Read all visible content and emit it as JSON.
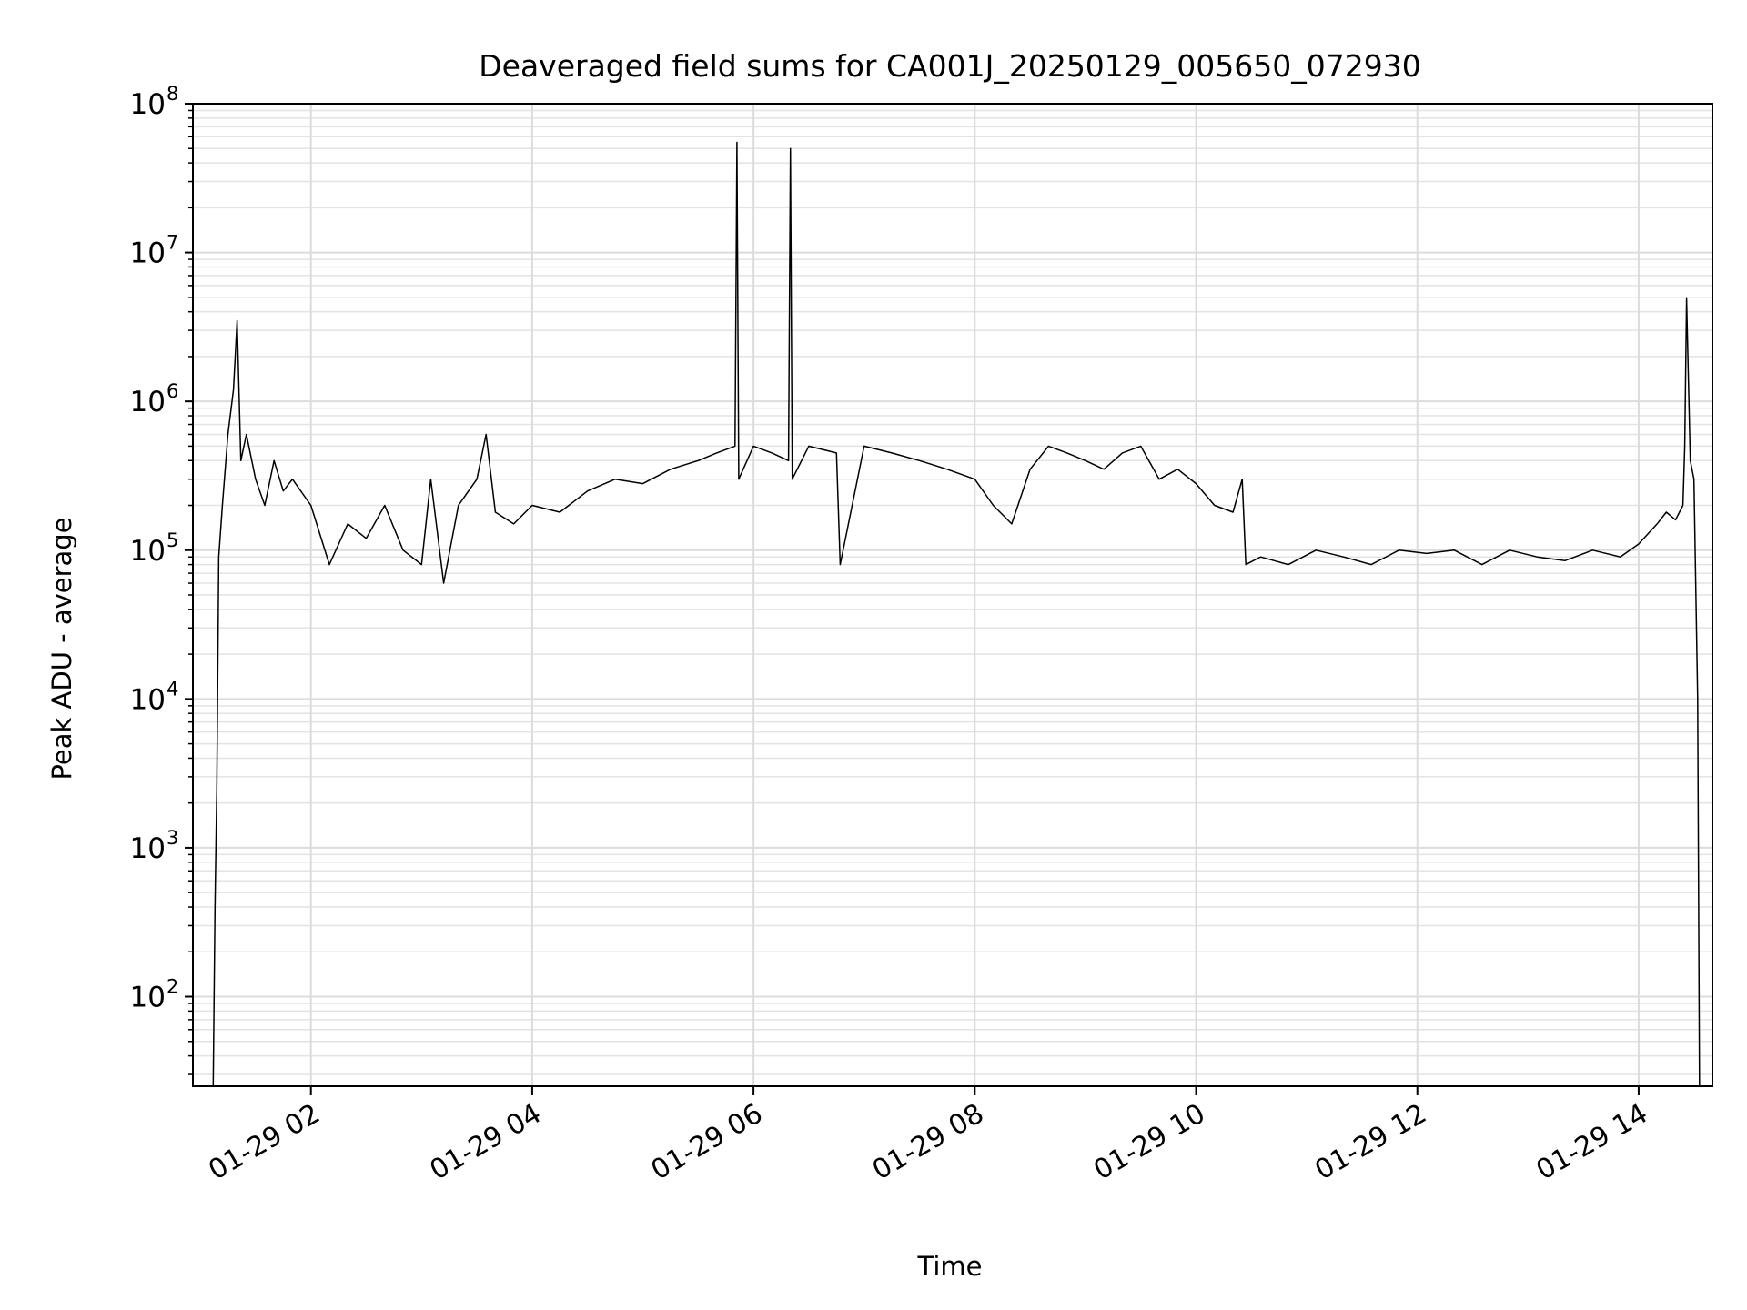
{
  "chart_data": {
    "type": "line",
    "title": "Deaveraged field sums for CA001J_20250129_005650_072930",
    "xlabel": "Time",
    "ylabel": "Peak ADU - average",
    "yscale": "log",
    "ylim": [
      25,
      100000000
    ],
    "xlim": [
      "2025-01-29T00:56:00",
      "2025-01-29T14:40:00"
    ],
    "grid": true,
    "x_ticks": [
      {
        "t": "2025-01-29T02:00",
        "label": "01-29 02"
      },
      {
        "t": "2025-01-29T04:00",
        "label": "01-29 04"
      },
      {
        "t": "2025-01-29T06:00",
        "label": "01-29 06"
      },
      {
        "t": "2025-01-29T08:00",
        "label": "01-29 08"
      },
      {
        "t": "2025-01-29T10:00",
        "label": "01-29 10"
      },
      {
        "t": "2025-01-29T12:00",
        "label": "01-29 12"
      },
      {
        "t": "2025-01-29T14:00",
        "label": "01-29 14"
      }
    ],
    "y_ticks": [
      {
        "v": 100,
        "base": "10",
        "exp": "2"
      },
      {
        "v": 1000,
        "base": "10",
        "exp": "3"
      },
      {
        "v": 10000,
        "base": "10",
        "exp": "4"
      },
      {
        "v": 100000,
        "base": "10",
        "exp": "5"
      },
      {
        "v": 1000000,
        "base": "10",
        "exp": "6"
      },
      {
        "v": 10000000,
        "base": "10",
        "exp": "7"
      },
      {
        "v": 100000000,
        "base": "10",
        "exp": "8"
      }
    ],
    "series": [
      {
        "color": "#000000",
        "x": [
          "2025-01-29T01:07",
          "2025-01-29T01:08",
          "2025-01-29T01:09",
          "2025-01-29T01:10",
          "2025-01-29T01:12",
          "2025-01-29T01:15",
          "2025-01-29T01:18",
          "2025-01-29T01:20",
          "2025-01-29T01:22",
          "2025-01-29T01:25",
          "2025-01-29T01:30",
          "2025-01-29T01:35",
          "2025-01-29T01:40",
          "2025-01-29T01:45",
          "2025-01-29T01:50",
          "2025-01-29T02:00",
          "2025-01-29T02:10",
          "2025-01-29T02:20",
          "2025-01-29T02:30",
          "2025-01-29T02:40",
          "2025-01-29T02:50",
          "2025-01-29T03:00",
          "2025-01-29T03:05",
          "2025-01-29T03:12",
          "2025-01-29T03:20",
          "2025-01-29T03:30",
          "2025-01-29T03:35",
          "2025-01-29T03:40",
          "2025-01-29T03:50",
          "2025-01-29T04:00",
          "2025-01-29T04:15",
          "2025-01-29T04:30",
          "2025-01-29T04:45",
          "2025-01-29T05:00",
          "2025-01-29T05:15",
          "2025-01-29T05:30",
          "2025-01-29T05:40",
          "2025-01-29T05:50",
          "2025-01-29T05:51",
          "2025-01-29T05:52",
          "2025-01-29T06:00",
          "2025-01-29T06:10",
          "2025-01-29T06:19",
          "2025-01-29T06:20",
          "2025-01-29T06:21",
          "2025-01-29T06:30",
          "2025-01-29T06:45",
          "2025-01-29T06:47",
          "2025-01-29T07:00",
          "2025-01-29T07:15",
          "2025-01-29T07:30",
          "2025-01-29T07:45",
          "2025-01-29T08:00",
          "2025-01-29T08:10",
          "2025-01-29T08:20",
          "2025-01-29T08:30",
          "2025-01-29T08:40",
          "2025-01-29T08:50",
          "2025-01-29T09:00",
          "2025-01-29T09:10",
          "2025-01-29T09:20",
          "2025-01-29T09:30",
          "2025-01-29T09:40",
          "2025-01-29T09:50",
          "2025-01-29T10:00",
          "2025-01-29T10:10",
          "2025-01-29T10:20",
          "2025-01-29T10:25",
          "2025-01-29T10:27",
          "2025-01-29T10:35",
          "2025-01-29T10:50",
          "2025-01-29T11:05",
          "2025-01-29T11:20",
          "2025-01-29T11:35",
          "2025-01-29T11:50",
          "2025-01-29T12:05",
          "2025-01-29T12:20",
          "2025-01-29T12:35",
          "2025-01-29T12:50",
          "2025-01-29T13:05",
          "2025-01-29T13:20",
          "2025-01-29T13:35",
          "2025-01-29T13:50",
          "2025-01-29T14:00",
          "2025-01-29T14:10",
          "2025-01-29T14:15",
          "2025-01-29T14:20",
          "2025-01-29T14:24",
          "2025-01-29T14:25",
          "2025-01-29T14:26",
          "2025-01-29T14:28",
          "2025-01-29T14:30",
          "2025-01-29T14:32",
          "2025-01-29T14:33"
        ],
        "y": [
          25,
          400,
          2500,
          90000,
          200000,
          600000,
          1200000,
          3500000,
          400000,
          600000,
          300000,
          200000,
          400000,
          250000,
          300000,
          200000,
          80000,
          150000,
          120000,
          200000,
          100000,
          80000,
          300000,
          60000,
          200000,
          300000,
          600000,
          180000,
          150000,
          200000,
          180000,
          250000,
          300000,
          280000,
          350000,
          400000,
          450000,
          500000,
          55000000,
          300000,
          500000,
          450000,
          400000,
          50000000,
          300000,
          500000,
          450000,
          80000,
          500000,
          450000,
          400000,
          350000,
          300000,
          200000,
          150000,
          350000,
          500000,
          450000,
          400000,
          350000,
          450000,
          500000,
          300000,
          350000,
          280000,
          200000,
          180000,
          300000,
          80000,
          90000,
          80000,
          100000,
          90000,
          80000,
          100000,
          95000,
          100000,
          80000,
          100000,
          90000,
          85000,
          100000,
          90000,
          110000,
          150000,
          180000,
          160000,
          200000,
          500000,
          4900000,
          400000,
          300000,
          10000,
          25
        ]
      }
    ]
  }
}
